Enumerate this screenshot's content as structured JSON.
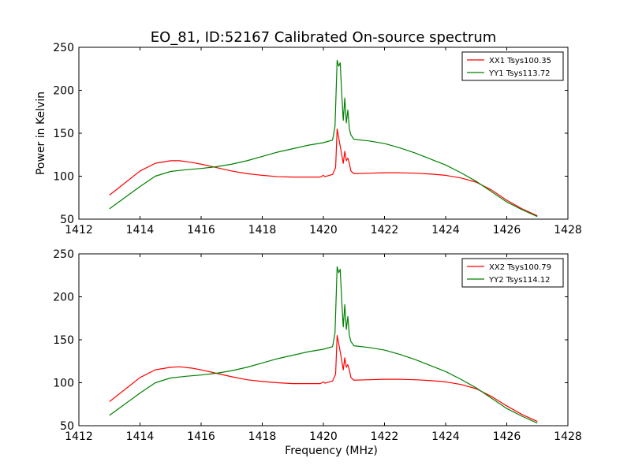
{
  "title": "EO_81, ID:52167 Calibrated On-source spectrum",
  "colors": {
    "xx": "#ff0000",
    "yy": "#008000"
  },
  "chart_data": [
    {
      "type": "line",
      "ylabel": "Power in Kelvin",
      "xlabel": "",
      "xlim": [
        1412,
        1428
      ],
      "ylim": [
        50,
        250
      ],
      "xticks": [
        1412,
        1414,
        1416,
        1418,
        1420,
        1422,
        1424,
        1426,
        1428
      ],
      "yticks": [
        50,
        100,
        150,
        200,
        250
      ],
      "legend": "top-right",
      "series": [
        {
          "name": "XX1 Tsys100.35",
          "color": "#ff0000",
          "x": [
            1413.0,
            1413.5,
            1414.0,
            1414.5,
            1415.0,
            1415.3,
            1415.7,
            1416.0,
            1416.5,
            1417.0,
            1417.5,
            1418.0,
            1418.5,
            1419.0,
            1419.5,
            1419.9,
            1420.0,
            1420.05,
            1420.3,
            1420.4,
            1420.45,
            1420.5,
            1420.6,
            1420.65,
            1420.7,
            1420.75,
            1420.8,
            1420.85,
            1420.9,
            1421.0,
            1421.5,
            1422.0,
            1422.5,
            1423.0,
            1423.5,
            1424.0,
            1424.5,
            1425.0,
            1425.5,
            1426.0,
            1426.5,
            1427.0
          ],
          "y": [
            78,
            92,
            106,
            115,
            118,
            118,
            116,
            114,
            110,
            106,
            103,
            101,
            99.5,
            99,
            99,
            99,
            101,
            99.5,
            102,
            110,
            155,
            145,
            125,
            115,
            129,
            118,
            121,
            115,
            106,
            103,
            103.5,
            104,
            104,
            103.5,
            102.5,
            101,
            98,
            93,
            84,
            72,
            62,
            54
          ]
        },
        {
          "name": "YY1 Tsys113.72",
          "color": "#008000",
          "x": [
            1413.0,
            1413.5,
            1414.0,
            1414.5,
            1415.0,
            1415.5,
            1416.0,
            1416.5,
            1417.0,
            1417.5,
            1418.0,
            1418.5,
            1419.0,
            1419.5,
            1420.0,
            1420.3,
            1420.38,
            1420.45,
            1420.5,
            1420.55,
            1420.6,
            1420.65,
            1420.7,
            1420.75,
            1420.8,
            1420.85,
            1420.9,
            1421.0,
            1421.5,
            1422.0,
            1422.5,
            1423.0,
            1423.5,
            1424.0,
            1424.5,
            1425.0,
            1425.5,
            1426.0,
            1426.5,
            1427.0
          ],
          "y": [
            62,
            75,
            88,
            100,
            105.5,
            107.5,
            109,
            111,
            114,
            118,
            123,
            128,
            132,
            136,
            139,
            142,
            158,
            235,
            228,
            232,
            196,
            165,
            191,
            162,
            177,
            155,
            148,
            143,
            141,
            138,
            133,
            127,
            120,
            113,
            104,
            94,
            82,
            70,
            61,
            53
          ]
        }
      ]
    },
    {
      "type": "line",
      "ylabel": "",
      "xlabel": "Frequency (MHz)",
      "xlim": [
        1412,
        1428
      ],
      "ylim": [
        50,
        250
      ],
      "xticks": [
        1412,
        1414,
        1416,
        1418,
        1420,
        1422,
        1424,
        1426,
        1428
      ],
      "yticks": [
        50,
        100,
        150,
        200,
        250
      ],
      "legend": "top-right",
      "series": [
        {
          "name": "XX2 Tsys100.79",
          "color": "#ff0000",
          "x": [
            1413.0,
            1413.5,
            1414.0,
            1414.5,
            1415.0,
            1415.3,
            1415.7,
            1416.0,
            1416.5,
            1417.0,
            1417.5,
            1418.0,
            1418.5,
            1419.0,
            1419.5,
            1419.9,
            1420.0,
            1420.05,
            1420.3,
            1420.4,
            1420.45,
            1420.5,
            1420.6,
            1420.65,
            1420.7,
            1420.75,
            1420.8,
            1420.85,
            1420.9,
            1421.0,
            1421.5,
            1422.0,
            1422.5,
            1423.0,
            1423.5,
            1424.0,
            1424.5,
            1425.0,
            1425.5,
            1426.0,
            1426.5,
            1427.0
          ],
          "y": [
            78,
            92,
            106,
            115,
            118,
            118.5,
            117,
            115,
            111,
            107,
            103.5,
            101.5,
            100,
            99,
            99,
            99,
            101,
            99.5,
            102,
            110,
            155,
            146,
            126,
            115,
            129,
            118,
            121,
            115,
            106,
            103,
            103.5,
            104,
            104,
            103.5,
            102.5,
            101,
            98,
            93,
            84,
            73,
            63,
            55
          ]
        },
        {
          "name": "YY2 Tsys114.12",
          "color": "#008000",
          "x": [
            1413.0,
            1413.5,
            1414.0,
            1414.5,
            1415.0,
            1415.5,
            1416.0,
            1416.5,
            1417.0,
            1417.5,
            1418.0,
            1418.5,
            1419.0,
            1419.5,
            1420.0,
            1420.3,
            1420.38,
            1420.45,
            1420.5,
            1420.55,
            1420.6,
            1420.65,
            1420.7,
            1420.75,
            1420.8,
            1420.85,
            1420.9,
            1421.0,
            1421.5,
            1422.0,
            1422.5,
            1423.0,
            1423.5,
            1424.0,
            1424.5,
            1425.0,
            1425.5,
            1426.0,
            1426.5,
            1427.0
          ],
          "y": [
            62,
            75,
            88,
            100,
            105.5,
            107.5,
            109,
            111,
            114,
            118,
            123,
            128,
            132,
            136,
            139,
            142,
            158,
            235,
            228,
            232,
            196,
            165,
            191,
            162,
            177,
            155,
            148,
            143,
            141,
            138,
            133,
            127,
            120,
            113,
            104,
            94,
            82,
            70,
            61,
            53
          ]
        }
      ]
    }
  ]
}
